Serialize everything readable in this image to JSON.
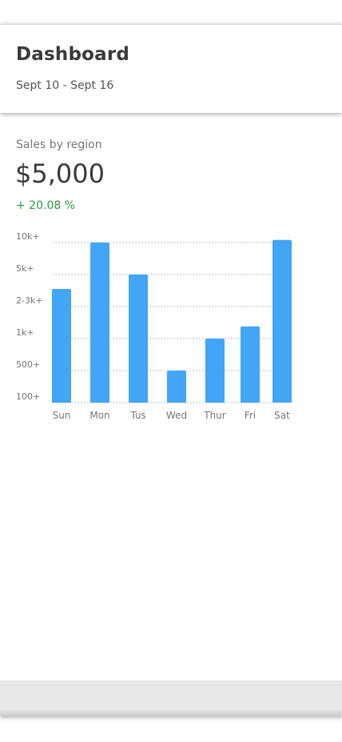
{
  "header": {
    "title": "Dashboard",
    "date_range": "Sept 10 - Sept 16"
  },
  "sales_card": {
    "title": "Sales by region",
    "total": "$5,000",
    "change": "+ 20.08 %"
  },
  "colors": {
    "bar": "#42a5f5",
    "grid": "#b8b8b8",
    "tick_text": "#777777",
    "positive": "#2a9d3a"
  },
  "chart_data": {
    "type": "bar",
    "categories": [
      "Sun",
      "Mon",
      "Tus",
      "Wed",
      "Thur",
      "Fri",
      "Sat"
    ],
    "y_ticks": [
      "100+",
      "500+",
      "1k+",
      "2-3k+",
      "5k+",
      "10k+"
    ],
    "y_scale": "ordinal level (0 = 100+, 5 = 10k+)",
    "values": [
      3.55,
      5.0,
      4.0,
      1.0,
      2.0,
      2.38,
      5.08
    ],
    "ylim": [
      0,
      5
    ],
    "grid": true
  }
}
